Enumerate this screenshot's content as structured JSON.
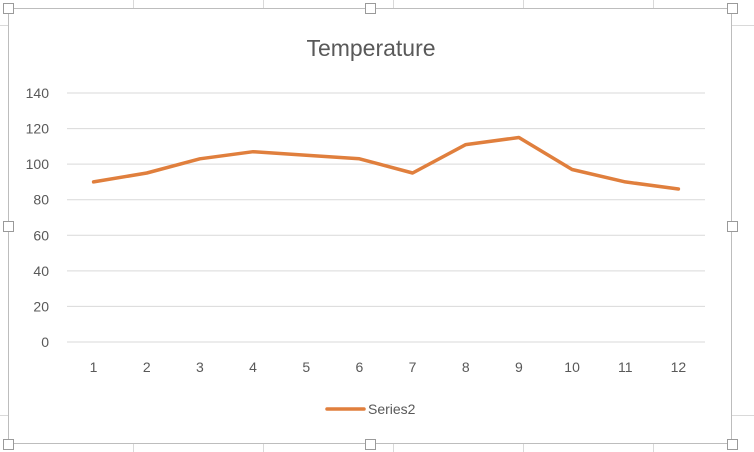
{
  "chart_data": {
    "type": "line",
    "title": "Temperature",
    "xlabel": "",
    "ylabel": "",
    "categories": [
      "1",
      "2",
      "3",
      "4",
      "5",
      "6",
      "7",
      "8",
      "9",
      "10",
      "11",
      "12"
    ],
    "series": [
      {
        "name": "Series2",
        "color": "#E07F3D",
        "values": [
          90,
          95,
          103,
          107,
          105,
          103,
          95,
          111,
          115,
          97,
          90,
          86
        ]
      }
    ],
    "ylim": [
      0,
      140
    ],
    "yticks": [
      "0",
      "20",
      "40",
      "60",
      "80",
      "100",
      "120",
      "140"
    ],
    "grid": "horizontal",
    "legend": "bottom"
  },
  "colors": {
    "series": "#E07F3D",
    "gridline": "#d9d9d9",
    "text": "#595959",
    "title": "#595959"
  }
}
